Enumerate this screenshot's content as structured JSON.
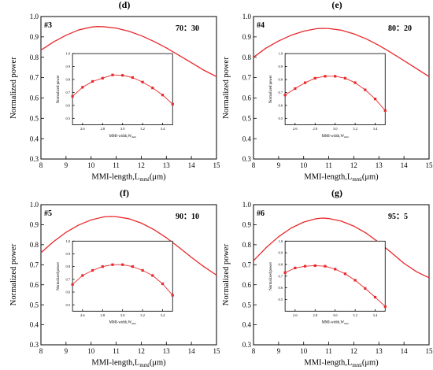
{
  "figure": {
    "caption_note": ""
  },
  "chart_data": [
    {
      "type": "line",
      "panel_letter": "(d)",
      "tag": "#3",
      "ratio": "70：30",
      "xlabel": "MMI-length,L",
      "xlabel_sub": "mmi",
      "xlabel_unit": "(μm)",
      "ylabel": "Normalized power",
      "xlim": [
        8,
        15
      ],
      "ylim": [
        0.3,
        1.0
      ],
      "xticks": [
        "8",
        "9",
        "10",
        "11",
        "12",
        "13",
        "14",
        "15"
      ],
      "yticks": [
        "0.3",
        "0.4",
        "0.5",
        "0.6",
        "0.7",
        "0.8",
        "0.9",
        "1.0"
      ],
      "series": [
        {
          "color": "#e8282b",
          "x": [
            8,
            8.5,
            9,
            9.5,
            10,
            10.25,
            10.5,
            11,
            11.5,
            12,
            12.5,
            13,
            13.5,
            14,
            14.5,
            15
          ],
          "y": [
            0.835,
            0.875,
            0.908,
            0.934,
            0.948,
            0.951,
            0.95,
            0.943,
            0.928,
            0.906,
            0.878,
            0.846,
            0.81,
            0.773,
            0.736,
            0.705
          ]
        }
      ],
      "inset": {
        "type": "line",
        "xlabel": "MMI-width,W",
        "xlabel_sub": "mmi",
        "xlabel_unit": "",
        "ylabel": "Normalized power",
        "xlim": [
          2.5,
          3.5
        ],
        "ylim": [
          0.45,
          1.0
        ],
        "xticks": [
          "2.6",
          "2.8",
          "3.0",
          "3.2",
          "3.4"
        ],
        "yticks": [
          "0.5",
          "0.6",
          "0.7",
          "0.8",
          "0.9",
          "1.0"
        ],
        "series": [
          {
            "color": "#e8282b",
            "marker": "square",
            "x": [
              2.5,
              2.6,
              2.7,
              2.8,
              2.9,
              3.0,
              3.1,
              3.2,
              3.3,
              3.4,
              3.5
            ],
            "y": [
              0.67,
              0.74,
              0.785,
              0.81,
              0.835,
              0.832,
              0.815,
              0.78,
              0.735,
              0.68,
              0.61
            ]
          }
        ]
      }
    },
    {
      "type": "line",
      "panel_letter": "(e)",
      "tag": "#4",
      "ratio": "80：20",
      "xlabel": "MMI-length,L",
      "xlabel_sub": "mmi",
      "xlabel_unit": "(μm)",
      "ylabel": "Normalized power",
      "xlim": [
        8,
        15
      ],
      "ylim": [
        0.3,
        1.0
      ],
      "xticks": [
        "8",
        "9",
        "10",
        "11",
        "12",
        "13",
        "14",
        "15"
      ],
      "yticks": [
        "0.3",
        "0.4",
        "0.5",
        "0.6",
        "0.7",
        "0.8",
        "0.9",
        "1.0"
      ],
      "series": [
        {
          "color": "#e8282b",
          "x": [
            8,
            8.5,
            9,
            9.5,
            10,
            10.5,
            10.75,
            11,
            11.5,
            12,
            12.5,
            13,
            13.5,
            14,
            14.5,
            15
          ],
          "y": [
            0.8,
            0.845,
            0.88,
            0.908,
            0.928,
            0.94,
            0.942,
            0.941,
            0.933,
            0.915,
            0.89,
            0.858,
            0.822,
            0.783,
            0.744,
            0.705
          ]
        }
      ],
      "inset": {
        "type": "line",
        "xlabel": "MMI-width,W",
        "xlabel_sub": "mmi",
        "xlabel_unit": "",
        "ylabel": "Normalized power",
        "xlim": [
          2.5,
          3.5
        ],
        "ylim": [
          0.45,
          1.0
        ],
        "xticks": [
          "2.6",
          "2.8",
          "3.0",
          "3.2",
          "3.4"
        ],
        "yticks": [
          "0.5",
          "0.6",
          "0.7",
          "0.8",
          "0.9",
          "1.0"
        ],
        "series": [
          {
            "color": "#e8282b",
            "marker": "square",
            "x": [
              2.5,
              2.6,
              2.7,
              2.8,
              2.9,
              3.0,
              3.1,
              3.2,
              3.3,
              3.4,
              3.5
            ],
            "y": [
              0.68,
              0.73,
              0.775,
              0.81,
              0.825,
              0.825,
              0.81,
              0.775,
              0.72,
              0.65,
              0.56
            ]
          }
        ]
      }
    },
    {
      "type": "line",
      "panel_letter": "(f)",
      "tag": "#5",
      "ratio": "90：10",
      "xlabel": "MMI-length,L",
      "xlabel_sub": "mmi",
      "xlabel_unit": "(μm)",
      "ylabel": "Normalized power",
      "xlim": [
        8,
        15
      ],
      "ylim": [
        0.3,
        1.0
      ],
      "xticks": [
        "8",
        "9",
        "10",
        "11",
        "12",
        "13",
        "14",
        "15"
      ],
      "yticks": [
        "0.3",
        "0.4",
        "0.5",
        "0.6",
        "0.7",
        "0.8",
        "0.9",
        "1.0"
      ],
      "series": [
        {
          "color": "#e8282b",
          "x": [
            8,
            8.5,
            9,
            9.5,
            10,
            10.5,
            10.75,
            11,
            11.5,
            12,
            12.5,
            13,
            13.5,
            14,
            14.5,
            15
          ],
          "y": [
            0.76,
            0.815,
            0.862,
            0.898,
            0.924,
            0.939,
            0.941,
            0.94,
            0.93,
            0.908,
            0.876,
            0.835,
            0.787,
            0.737,
            0.69,
            0.648
          ]
        }
      ],
      "inset": {
        "type": "line",
        "xlabel": "MMI-width,W",
        "xlabel_sub": "mmi",
        "xlabel_unit": "",
        "ylabel": "Normalized power",
        "xlim": [
          2.5,
          3.5
        ],
        "ylim": [
          0.45,
          1.0
        ],
        "xticks": [
          "2.6",
          "2.8",
          "3.0",
          "3.2",
          "3.4"
        ],
        "yticks": [
          "0.5",
          "0.6",
          "0.7",
          "0.8",
          "0.9",
          "1.0"
        ],
        "series": [
          {
            "color": "#e8282b",
            "marker": "square",
            "x": [
              2.5,
              2.6,
              2.7,
              2.8,
              2.9,
              3.0,
              3.1,
              3.2,
              3.3,
              3.4,
              3.5
            ],
            "y": [
              0.66,
              0.73,
              0.77,
              0.8,
              0.815,
              0.815,
              0.8,
              0.77,
              0.73,
              0.665,
              0.575
            ]
          }
        ]
      }
    },
    {
      "type": "line",
      "panel_letter": "(g)",
      "tag": "#6",
      "ratio": "95：5",
      "xlabel": "MMI-length,L",
      "xlabel_sub": "mmi",
      "xlabel_unit": "(μm)",
      "ylabel": "Normalized power",
      "xlim": [
        8,
        15
      ],
      "ylim": [
        0.3,
        1.0
      ],
      "xticks": [
        "8",
        "9",
        "10",
        "11",
        "12",
        "13",
        "14",
        "15"
      ],
      "yticks": [
        "0.3",
        "0.4",
        "0.5",
        "0.6",
        "0.7",
        "0.8",
        "0.9",
        "1.0"
      ],
      "series": [
        {
          "color": "#e8282b",
          "x": [
            8,
            8.5,
            9,
            9.5,
            10,
            10.5,
            10.75,
            11,
            11.5,
            12,
            12.5,
            13,
            13.5,
            14,
            14.5,
            15
          ],
          "y": [
            0.72,
            0.785,
            0.84,
            0.883,
            0.913,
            0.93,
            0.933,
            0.931,
            0.918,
            0.893,
            0.857,
            0.811,
            0.76,
            0.707,
            0.665,
            0.635
          ]
        }
      ],
      "inset": {
        "type": "line",
        "xlabel": "MMI-width,W",
        "xlabel_sub": "mmi",
        "xlabel_unit": "",
        "ylabel": "Normalized power",
        "xlim": [
          2.5,
          3.5
        ],
        "ylim": [
          0.4,
          1.0
        ],
        "xticks": [
          "2.6",
          "2.8",
          "3.0",
          "3.2",
          "3.4"
        ],
        "yticks": [
          "0.5",
          "0.6",
          "0.7",
          "0.8",
          "0.9",
          "1.0"
        ],
        "series": [
          {
            "color": "#e8282b",
            "marker": "square",
            "x": [
              2.5,
              2.6,
              2.7,
              2.8,
              2.9,
              3.0,
              3.1,
              3.2,
              3.3,
              3.4,
              3.5
            ],
            "y": [
              0.73,
              0.77,
              0.785,
              0.79,
              0.785,
              0.76,
              0.72,
              0.665,
              0.595,
              0.52,
              0.44
            ]
          }
        ]
      }
    }
  ]
}
